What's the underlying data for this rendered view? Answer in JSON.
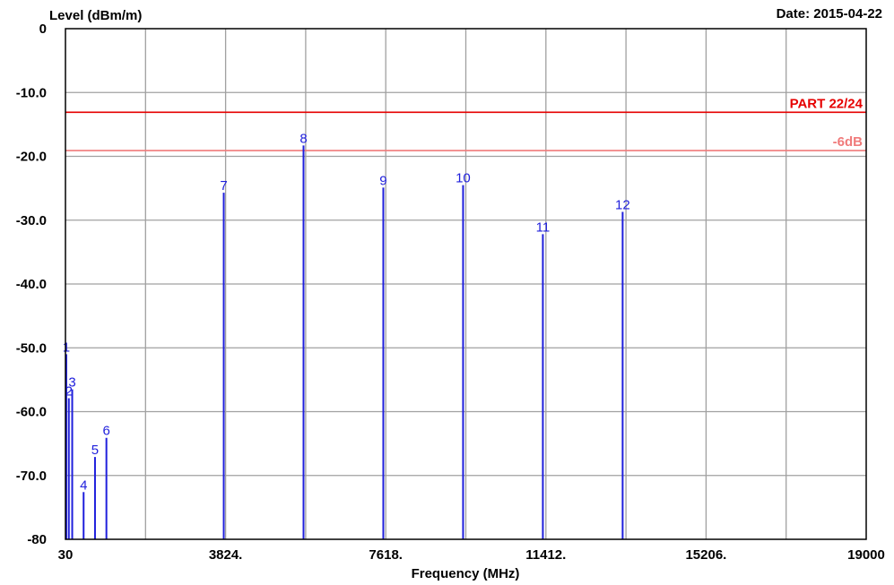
{
  "header": {
    "ylabel": "Level (dBm/m)",
    "date_label": "Date: 2015-04-22"
  },
  "chart_data": {
    "type": "bar",
    "xlabel": "Frequency (MHz)",
    "ylabel": "Level (dBm/m)",
    "xlim": [
      30,
      19000
    ],
    "ylim": [
      -80,
      0
    ],
    "x_ticks": [
      {
        "value": 30,
        "label": "30"
      },
      {
        "value": 3824,
        "label": "3824."
      },
      {
        "value": 7618,
        "label": "7618."
      },
      {
        "value": 11412,
        "label": "11412."
      },
      {
        "value": 15206,
        "label": "15206."
      },
      {
        "value": 19000,
        "label": "19000"
      }
    ],
    "y_ticks": [
      {
        "value": 0,
        "label": "0"
      },
      {
        "value": -10,
        "label": "-10.0"
      },
      {
        "value": -20,
        "label": "-20.0"
      },
      {
        "value": -30,
        "label": "-30.0"
      },
      {
        "value": -40,
        "label": "-40.0"
      },
      {
        "value": -50,
        "label": "-50.0"
      },
      {
        "value": -60,
        "label": "-60.0"
      },
      {
        "value": -70,
        "label": "-70.0"
      },
      {
        "value": -80,
        "label": "-80"
      }
    ],
    "grid": true,
    "x_gridlines": 10,
    "y_gridlines": 8,
    "limit_lines": [
      {
        "name": "PART 22/24",
        "value": -13.1,
        "color": "#e60000"
      },
      {
        "name": "-6dB",
        "value": -19.1,
        "color": "#f07a7a"
      }
    ],
    "markers": [
      {
        "label": "1",
        "x": 50,
        "y": -51.0
      },
      {
        "label": "2",
        "x": 110,
        "y": -57.9
      },
      {
        "label": "3",
        "x": 190,
        "y": -56.5
      },
      {
        "label": "4",
        "x": 460,
        "y": -72.6
      },
      {
        "label": "5",
        "x": 730,
        "y": -67.1
      },
      {
        "label": "6",
        "x": 1000,
        "y": -64.1
      },
      {
        "label": "7",
        "x": 3780,
        "y": -25.7
      },
      {
        "label": "8",
        "x": 5670,
        "y": -18.3
      },
      {
        "label": "9",
        "x": 7560,
        "y": -24.9
      },
      {
        "label": "10",
        "x": 9450,
        "y": -24.5
      },
      {
        "label": "11",
        "x": 11340,
        "y": -32.2
      },
      {
        "label": "12",
        "x": 13230,
        "y": -28.7
      }
    ],
    "marker_color": "#1f1fdc"
  }
}
